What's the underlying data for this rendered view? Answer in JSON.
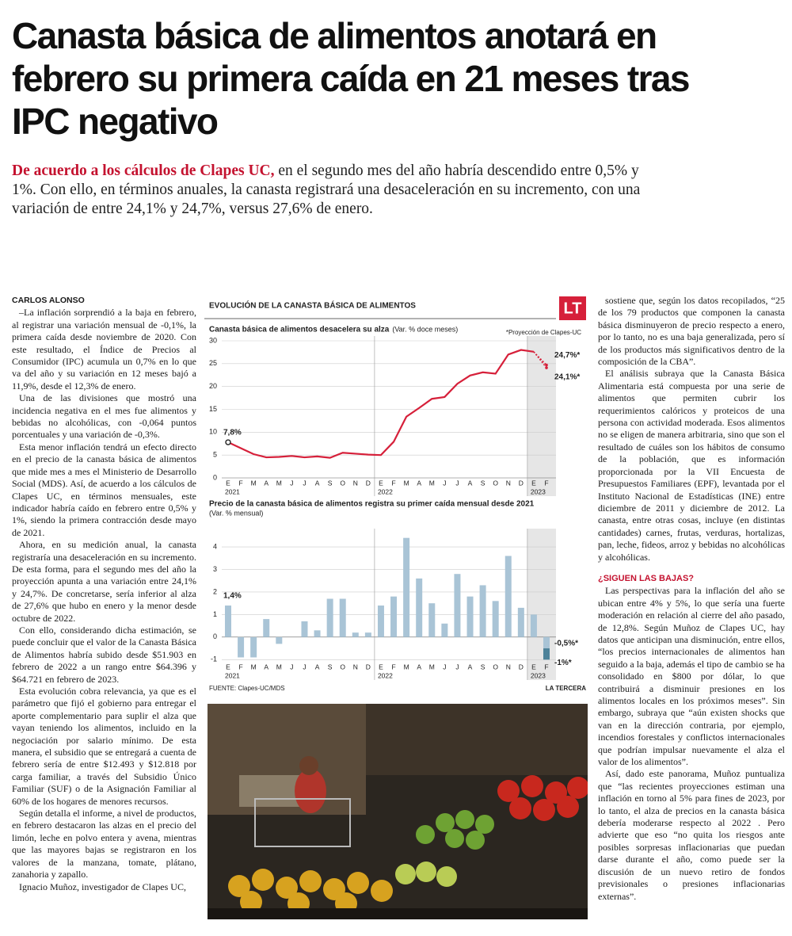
{
  "headline": "Canasta básica de alimentos anotará en febrero su primera caída en 21 meses tras IPC negativo",
  "lead": {
    "highlight": "De acuerdo a los cálculos de Clapes UC,",
    "text": "en el segundo mes del año habría descendido entre 0,5% y 1%. Con ello, en términos anuales, la canasta registrará una desaceleración en su incremento, con una variación de entre 24,1% y 24,7%, versus 27,6% de enero."
  },
  "column_1": {
    "author": "CARLOS ALONSO",
    "paragraphs": [
      "–La inflación sorprendió a la baja en febrero, al registrar una variación mensual de -0,1%, la primera caída desde noviembre de 2020. Con este resultado, el Índice de Precios al Consumidor (IPC) acumula un 0,7% en lo que va del año y su variación en 12 meses bajó a 11,9%, desde el 12,3% de enero.",
      "Una de las divisiones que mostró una incidencia negativa en el mes fue alimentos y bebidas no alcohólicas, con -0,064 puntos porcentuales y una variación de -0,3%.",
      "Esta menor inflación tendrá un efecto directo en el precio de la canasta básica de alimentos que mide mes a mes el Ministerio de Desarrollo Social (MDS). Así, de acuerdo a los cálculos de Clapes UC, en términos mensuales, este indicador habría caído en febrero entre 0,5% y 1%, siendo la primera contracción desde mayo de 2021.",
      "Ahora, en su medición anual, la canasta registraría una desaceleración en su incremento. De esta forma, para el segundo mes del año la proyección apunta a una variación entre 24,1% y 24,7%. De concretarse, sería inferior al alza de 27,6% que hubo en enero y la menor desde octubre de 2022.",
      "Con ello, considerando dicha estimación, se puede concluir que el valor de la Canasta Básica de Alimentos habría subido desde $51.903 en febrero de 2022 a un rango entre $64.396 y $64.721 en febrero de 2023.",
      "Esta evolución cobra relevancia, ya que es el parámetro que fijó el gobierno para entregar el aporte complementario para suplir el alza que vayan teniendo los alimentos, incluido en la negociación por salario mínimo. De esta manera, el subsidio que se entregará a cuenta de febrero sería de entre $12.493 y $12.818 por carga familiar, a través del Subsidio Único Familiar (SUF) o de la Asignación Familiar al 60% de los hogares de menores recursos.",
      "Según detalla el informe, a nivel de productos, en febrero destacaron las alzas en el precio del limón, leche en polvo entera y avena, mientras que las mayores bajas se registraron en los valores de la manzana, tomate, plátano, zanahoria y zapallo.",
      "Ignacio Muñoz, investigador de Clapes UC,"
    ]
  },
  "column_3": {
    "paragraphs": [
      "sostiene que, según los datos recopilados, “25 de los 79 productos que componen la canasta básica disminuyeron de precio respecto a enero, por lo tanto, no es una baja generalizada, pero sí de los productos más significativos dentro de la composición de la CBA”.",
      "El análisis subraya que la Canasta Básica Alimentaria está compuesta por una serie de alimentos que permiten cubrir los requerimientos calóricos y proteicos de una persona con actividad moderada. Esos alimentos no se eligen de manera arbitraria, sino que son el resultado de cuáles son los hábitos de consumo de la población, que es información proporcionada por la VII Encuesta de Presupuestos Familiares (EPF), levantada por el Instituto Nacional de Estadísticas (INE) entre diciembre de 2011 y diciembre de 2012. La canasta, entre otras cosas, incluye (en distintas cantidades) carnes, frutas, verduras, hortalizas, pan, leche, fideos, arroz y bebidas no alcohólicas y alcohólicas."
    ],
    "subheading": "¿SIGUEN LAS BAJAS?",
    "paragraphs_after": [
      "Las perspectivas para la inflación del año se ubican entre 4% y 5%, lo que sería una fuerte moderación en relación al cierre del año pasado, de 12,8%. Según Muñoz de Clapes UC, hay datos que anticipan una disminución, entre ellos, “los precios internacionales de alimentos han seguido a la baja, además el tipo de cambio se ha consolidado en $800 por dólar, lo que contribuirá a disminuir presiones en los alimentos locales en los próximos meses”. Sin embargo, subraya que “aún existen shocks que van en la dirección contraria, por ejemplo, incendios forestales y conflictos internacionales que podrían impulsar nuevamente el alza el valor de los alimentos”.",
      "Así, dado este panorama, Muñoz puntualiza que “las recientes proyecciones estiman una inflación en torno al 5% para fines de 2023, por lo tanto, el alza de precios en la canasta básica debería moderarse respecto al 2022 . Pero advierte que eso “no quita los riesgos ante posibles sorpresas inflacionarias que puedan darse durante el año, como puede ser la discusión de un nuevo retiro de fondos previsionales o presiones inflacionarias externas”."
    ]
  },
  "infographic": {
    "header": "EVOLUCIÓN DE LA CANASTA BÁSICA DE ALIMENTOS",
    "logo": "LT",
    "note": "*Proyección de Clapes-UC",
    "source": "FUENTE: Clapes-UC/MDS",
    "credit": "LA TERCERA"
  },
  "chart_data": [
    {
      "type": "line",
      "title": "Canasta básica de alimentos desacelera su alza",
      "subtitle": "(Var. % doce meses)",
      "categories": [
        "E",
        "F",
        "M",
        "A",
        "M",
        "J",
        "J",
        "A",
        "S",
        "O",
        "N",
        "D",
        "E",
        "F",
        "M",
        "A",
        "M",
        "J",
        "J",
        "A",
        "S",
        "O",
        "N",
        "D",
        "E",
        "F"
      ],
      "years": [
        "2021",
        "2022",
        "2023"
      ],
      "series": [
        {
          "color": "#d6203a",
          "values": [
            7.8,
            6.5,
            5.2,
            4.5,
            4.6,
            4.8,
            4.5,
            4.7,
            4.4,
            5.5,
            5.3,
            5.1,
            5.0,
            7.9,
            13.4,
            15.3,
            17.3,
            17.7,
            20.6,
            22.4,
            23.1,
            22.8,
            27.0,
            28.0,
            27.6,
            null
          ],
          "value_labels": [
            "7,8%",
            null,
            null,
            null,
            null,
            null,
            null,
            null,
            null,
            null,
            null,
            null,
            null,
            null,
            null,
            null,
            null,
            null,
            null,
            null,
            null,
            null,
            null,
            null,
            null,
            null
          ]
        },
        {
          "color": "#d6203a",
          "dashed": true,
          "values": [
            null,
            null,
            null,
            null,
            null,
            null,
            null,
            null,
            null,
            null,
            null,
            null,
            null,
            null,
            null,
            null,
            null,
            null,
            null,
            null,
            null,
            null,
            null,
            null,
            27.6,
            24.7
          ],
          "value_labels": [
            null,
            null,
            null,
            null,
            null,
            null,
            null,
            null,
            null,
            null,
            null,
            null,
            null,
            null,
            null,
            null,
            null,
            null,
            null,
            null,
            null,
            null,
            null,
            null,
            null,
            "24,7%*"
          ]
        },
        {
          "color": "#d6203a",
          "dashed": true,
          "values": [
            null,
            null,
            null,
            null,
            null,
            null,
            null,
            null,
            null,
            null,
            null,
            null,
            null,
            null,
            null,
            null,
            null,
            null,
            null,
            null,
            null,
            null,
            null,
            null,
            27.6,
            24.1
          ],
          "value_labels": [
            null,
            null,
            null,
            null,
            null,
            null,
            null,
            null,
            null,
            null,
            null,
            null,
            null,
            null,
            null,
            null,
            null,
            null,
            null,
            null,
            null,
            null,
            null,
            null,
            null,
            "24,1%*"
          ]
        }
      ],
      "ylim": [
        0,
        30
      ],
      "yticks": [
        0,
        5,
        10,
        15,
        20,
        25,
        30
      ],
      "grid": true
    },
    {
      "type": "bar",
      "title": "Precio de la canasta básica de alimentos registra su primer caída mensual desde 2021",
      "subtitle": "(Var. % mensual)",
      "categories": [
        "E",
        "F",
        "M",
        "A",
        "M",
        "J",
        "J",
        "A",
        "S",
        "O",
        "N",
        "D",
        "E",
        "F",
        "M",
        "A",
        "M",
        "J",
        "J",
        "A",
        "S",
        "O",
        "N",
        "D",
        "E",
        "F"
      ],
      "years": [
        "2021",
        "2022",
        "2023"
      ],
      "series": [
        {
          "color": "#a9c4d6",
          "values": [
            1.4,
            -0.9,
            -0.9,
            0.8,
            -0.3,
            0,
            0.7,
            0.3,
            1.7,
            1.7,
            0.2,
            0.2,
            1.4,
            1.8,
            4.4,
            2.6,
            1.5,
            0.6,
            2.8,
            1.8,
            2.3,
            1.6,
            3.6,
            1.3,
            1.0,
            null
          ],
          "value_labels": [
            "1,4%",
            null,
            null,
            null,
            null,
            null,
            null,
            null,
            null,
            null,
            null,
            null,
            null,
            null,
            null,
            null,
            null,
            null,
            null,
            null,
            null,
            null,
            null,
            null,
            null,
            null
          ]
        },
        {
          "color": "#4d8299",
          "values": [
            null,
            null,
            null,
            null,
            null,
            null,
            null,
            null,
            null,
            null,
            null,
            null,
            null,
            null,
            null,
            null,
            null,
            null,
            null,
            null,
            null,
            null,
            null,
            null,
            null,
            -1
          ],
          "value_labels": [
            null,
            null,
            null,
            null,
            null,
            null,
            null,
            null,
            null,
            null,
            null,
            null,
            null,
            null,
            null,
            null,
            null,
            null,
            null,
            null,
            null,
            null,
            null,
            null,
            null,
            "-1%*"
          ]
        },
        {
          "color": "#a9c4d6",
          "values": [
            null,
            null,
            null,
            null,
            null,
            null,
            null,
            null,
            null,
            null,
            null,
            null,
            null,
            null,
            null,
            null,
            null,
            null,
            null,
            null,
            null,
            null,
            null,
            null,
            null,
            -0.5
          ],
          "value_labels": [
            null,
            null,
            null,
            null,
            null,
            null,
            null,
            null,
            null,
            null,
            null,
            null,
            null,
            null,
            null,
            null,
            null,
            null,
            null,
            null,
            null,
            null,
            null,
            null,
            null,
            "-0,5%*"
          ]
        }
      ],
      "ylim": [
        -1.2,
        4.6
      ],
      "yticks": [
        -1,
        0,
        1,
        2,
        3,
        4
      ],
      "grid": true
    }
  ]
}
